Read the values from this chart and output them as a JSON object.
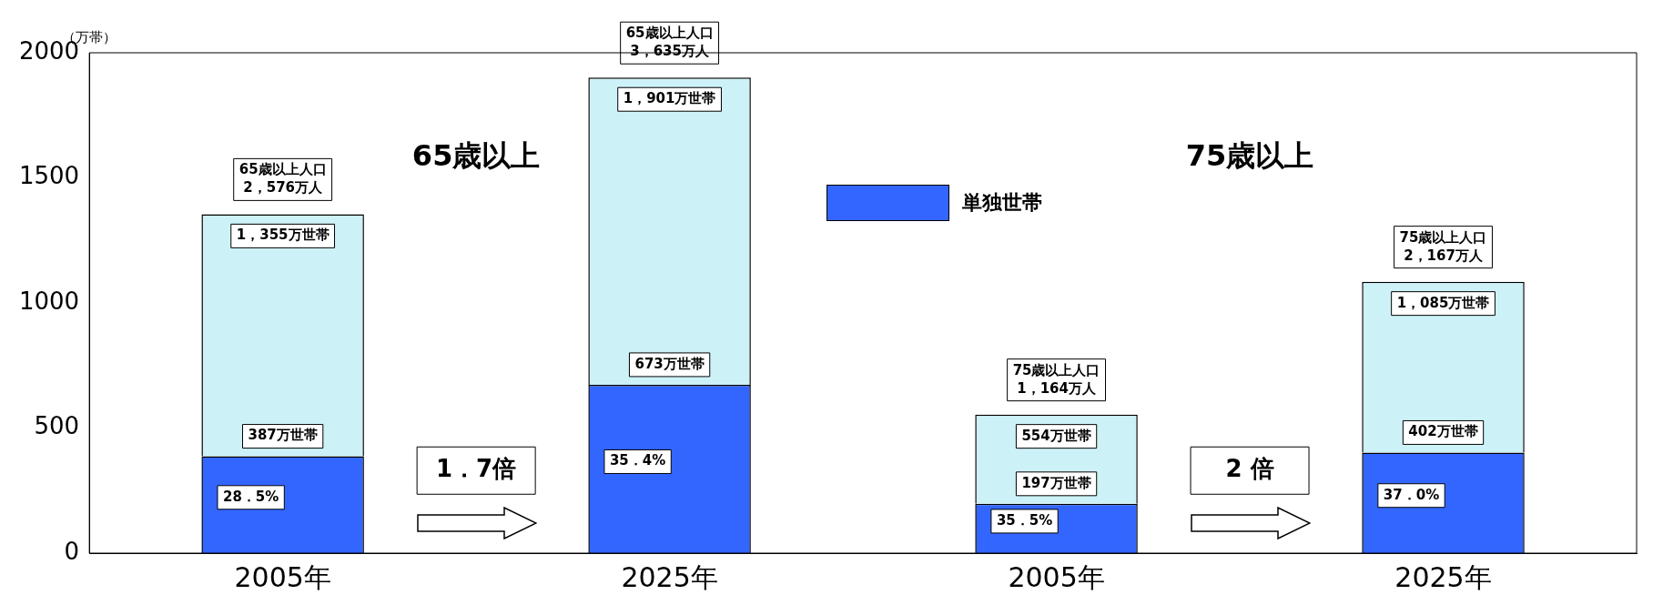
{
  "chart_data": {
    "type": "bar",
    "stacked": true,
    "ylabel": "（万帯）",
    "categories": [
      "2005年",
      "2025年",
      "2005年",
      "2025年"
    ],
    "series": [
      {
        "name": "単独世帯",
        "color": "#3366ff",
        "values": [
          387,
          673,
          197,
          402
        ],
        "value_labels": [
          "387万世帯",
          "673万世帯",
          "197万世帯",
          "402万世帯"
        ]
      },
      {
        "color": "#ccf2f8",
        "values": [
          968,
          1228,
          357,
          683
        ]
      }
    ],
    "totals": [
      "1，355万世帯",
      "1，901万世帯",
      "554万世帯",
      "1，085万世帯"
    ],
    "ylim": [
      0,
      2000
    ],
    "yticks": [
      0,
      500,
      1000,
      1500,
      2000
    ],
    "grid": false,
    "legend": "top",
    "annotations": [
      "65歳以上人口\n2，576万人",
      "65歳以上人口\n3，635万人",
      "75歳以上人口\n1，164万人",
      "75歳以上人口\n2，167万人",
      "65歳以上",
      "75歳以上",
      "1．7倍",
      "2 倍",
      "28．5%",
      "35．4%",
      "35．5%",
      "37．0%"
    ]
  }
}
